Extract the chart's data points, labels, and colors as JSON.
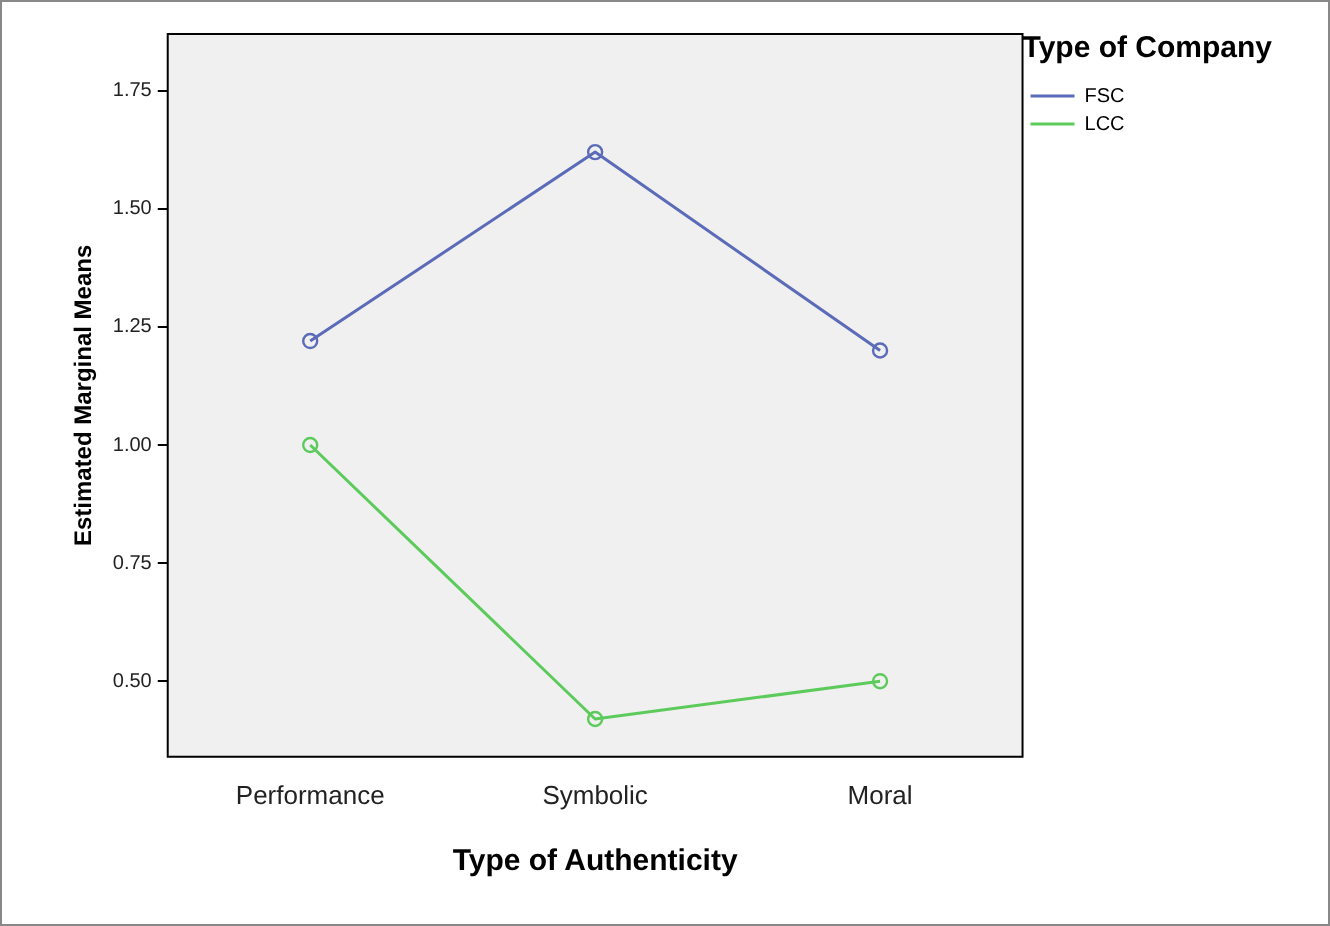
{
  "chart_data": {
    "type": "line",
    "xlabel": "Type of Authenticity",
    "ylabel": "Estimated Marginal Means",
    "legend_title": "Type of Company",
    "categories": [
      "Performance",
      "Symbolic",
      "Moral"
    ],
    "series": [
      {
        "name": "FSC",
        "color": "#5b6bb8",
        "values": [
          1.22,
          1.62,
          1.2
        ]
      },
      {
        "name": "LCC",
        "color": "#5ccb5c",
        "values": [
          1.0,
          0.42,
          0.5
        ]
      }
    ],
    "ylim": [
      0.34,
      1.87
    ],
    "yticks": [
      {
        "value": 0.5,
        "label": "0.50"
      },
      {
        "value": 0.75,
        "label": "0.75"
      },
      {
        "value": 1.0,
        "label": "1.00"
      },
      {
        "value": 1.25,
        "label": "1.25"
      },
      {
        "value": 1.5,
        "label": "1.50"
      },
      {
        "value": 1.75,
        "label": "1.75"
      }
    ],
    "grid": false,
    "legend": "top right",
    "marker": "circle",
    "line_style": "solid"
  }
}
